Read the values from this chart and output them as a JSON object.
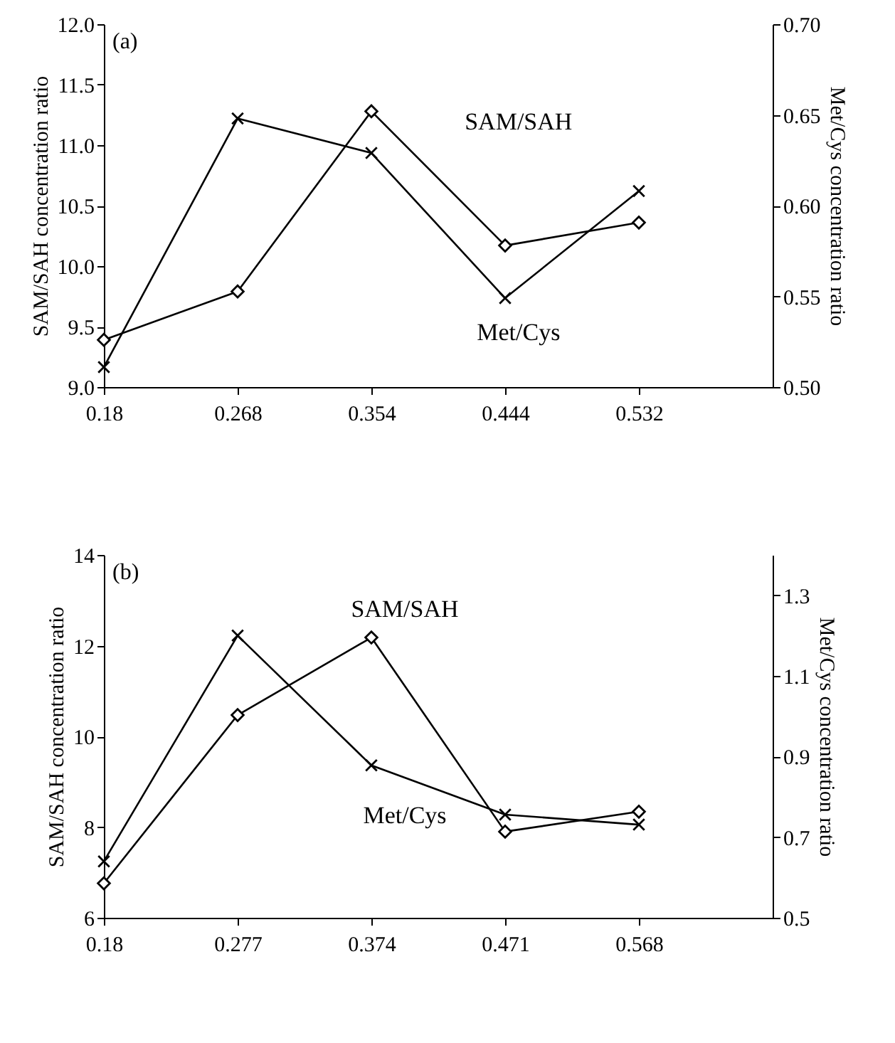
{
  "chart_data": [
    {
      "type": "line",
      "title": "(a)",
      "categories": [
        "0.18",
        "0.268",
        "0.354",
        "0.444",
        "0.532"
      ],
      "ylabel": "SAM/SAH concentration ratio",
      "y2label": "Met/Cys concentration ratio",
      "ylim": [
        9.0,
        12.0
      ],
      "yticks": [
        {
          "value": 9,
          "label": "9.0"
        },
        9.5,
        {
          "value": 10,
          "label": "10.0"
        },
        10.5,
        {
          "value": 11,
          "label": "11.0"
        },
        11.5,
        {
          "value": 12,
          "label": "12.0"
        }
      ],
      "y2lim": [
        0.5,
        0.7
      ],
      "y2ticks": [
        {
          "value": 0.5,
          "label": "0.50"
        },
        0.55,
        {
          "value": 0.6,
          "label": "0.60"
        },
        0.65,
        {
          "value": 0.7,
          "label": "0.70"
        }
      ],
      "grid": false,
      "line_style": "solid",
      "series": [
        {
          "name": "SAM/SAH",
          "color": "#000000",
          "marker": "diamond",
          "values": [
            9.39,
            9.79,
            11.28,
            10.17,
            10.36
          ]
        },
        {
          "name": "Met/Cys",
          "color": "#000000",
          "marker": "cross",
          "axis": "y2",
          "values": [
            0.511,
            0.648,
            0.629,
            0.549,
            0.608
          ]
        }
      ]
    },
    {
      "type": "line",
      "title": "(b)",
      "categories": [
        "0.18",
        "0.277",
        "0.374",
        "0.471",
        "0.568"
      ],
      "ylabel": "SAM/SAH concentration ratio",
      "y2label": "Met/Cys concentration ratio",
      "ylim": [
        6,
        14
      ],
      "yticks": [
        6,
        8,
        10,
        12,
        14
      ],
      "y2lim": [
        0.5,
        1.4
      ],
      "y2ticks": [
        0.5,
        0.7,
        0.9,
        1.1,
        1.3
      ],
      "grid": false,
      "line_style": "solid",
      "series": [
        {
          "name": "SAM/SAH",
          "color": "#000000",
          "marker": "diamond",
          "values": [
            6.76,
            10.47,
            12.18,
            7.9,
            8.34
          ]
        },
        {
          "name": "Met/Cys",
          "color": "#000000",
          "marker": "cross",
          "axis": "y2",
          "values": [
            0.64,
            1.2,
            0.878,
            0.756,
            0.731
          ]
        }
      ]
    }
  ]
}
